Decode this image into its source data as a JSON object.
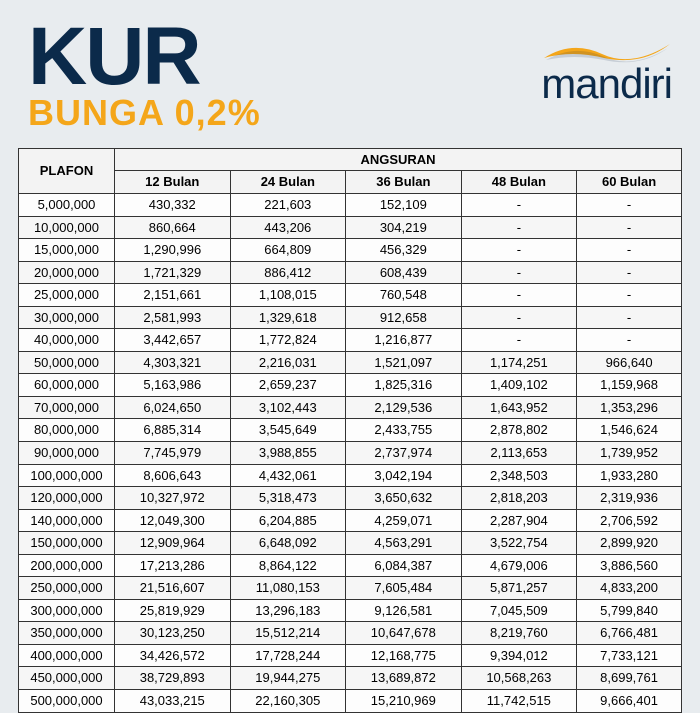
{
  "header": {
    "title": "KUR",
    "subtitle": "BUNGA 0,2%",
    "brand": "mandiri",
    "brand_color": "#0b2a4a",
    "accent_color": "#f4a61a"
  },
  "table": {
    "type": "table",
    "plafon_label": "PLAFON",
    "angsuran_label": "ANGSURAN",
    "columns": [
      "12 Bulan",
      "24 Bulan",
      "36 Bulan",
      "48 Bulan",
      "60 Bulan"
    ],
    "rows": [
      {
        "plafon": "5,000,000",
        "cells": [
          "430,332",
          "221,603",
          "152,109",
          "-",
          "-"
        ]
      },
      {
        "plafon": "10,000,000",
        "cells": [
          "860,664",
          "443,206",
          "304,219",
          "-",
          "-"
        ]
      },
      {
        "plafon": "15,000,000",
        "cells": [
          "1,290,996",
          "664,809",
          "456,329",
          "-",
          "-"
        ]
      },
      {
        "plafon": "20,000,000",
        "cells": [
          "1,721,329",
          "886,412",
          "608,439",
          "-",
          "-"
        ]
      },
      {
        "plafon": "25,000,000",
        "cells": [
          "2,151,661",
          "1,108,015",
          "760,548",
          "-",
          "-"
        ]
      },
      {
        "plafon": "30,000,000",
        "cells": [
          "2,581,993",
          "1,329,618",
          "912,658",
          "-",
          "-"
        ]
      },
      {
        "plafon": "40,000,000",
        "cells": [
          "3,442,657",
          "1,772,824",
          "1,216,877",
          "-",
          "-"
        ]
      },
      {
        "plafon": "50,000,000",
        "cells": [
          "4,303,321",
          "2,216,031",
          "1,521,097",
          "1,174,251",
          "966,640"
        ]
      },
      {
        "plafon": "60,000,000",
        "cells": [
          "5,163,986",
          "2,659,237",
          "1,825,316",
          "1,409,102",
          "1,159,968"
        ]
      },
      {
        "plafon": "70,000,000",
        "cells": [
          "6,024,650",
          "3,102,443",
          "2,129,536",
          "1,643,952",
          "1,353,296"
        ]
      },
      {
        "plafon": "80,000,000",
        "cells": [
          "6,885,314",
          "3,545,649",
          "2,433,755",
          "2,878,802",
          "1,546,624"
        ]
      },
      {
        "plafon": "90,000,000",
        "cells": [
          "7,745,979",
          "3,988,855",
          "2,737,974",
          "2,113,653",
          "1,739,952"
        ]
      },
      {
        "plafon": "100,000,000",
        "cells": [
          "8,606,643",
          "4,432,061",
          "3,042,194",
          "2,348,503",
          "1,933,280"
        ]
      },
      {
        "plafon": "120,000,000",
        "cells": [
          "10,327,972",
          "5,318,473",
          "3,650,632",
          "2,818,203",
          "2,319,936"
        ]
      },
      {
        "plafon": "140,000,000",
        "cells": [
          "12,049,300",
          "6,204,885",
          "4,259,071",
          "2,287,904",
          "2,706,592"
        ]
      },
      {
        "plafon": "150,000,000",
        "cells": [
          "12,909,964",
          "6,648,092",
          "4,563,291",
          "3,522,754",
          "2,899,920"
        ]
      },
      {
        "plafon": "200,000,000",
        "cells": [
          "17,213,286",
          "8,864,122",
          "6,084,387",
          "4,679,006",
          "3,886,560"
        ]
      },
      {
        "plafon": "250,000,000",
        "cells": [
          "21,516,607",
          "11,080,153",
          "7,605,484",
          "5,871,257",
          "4,833,200"
        ]
      },
      {
        "plafon": "300,000,000",
        "cells": [
          "25,819,929",
          "13,296,183",
          "9,126,581",
          "7,045,509",
          "5,799,840"
        ]
      },
      {
        "plafon": "350,000,000",
        "cells": [
          "30,123,250",
          "15,512,214",
          "10,647,678",
          "8,219,760",
          "6,766,481"
        ]
      },
      {
        "plafon": "400,000,000",
        "cells": [
          "34,426,572",
          "17,728,244",
          "12,168,775",
          "9,394,012",
          "7,733,121"
        ]
      },
      {
        "plafon": "450,000,000",
        "cells": [
          "38,729,893",
          "19,944,275",
          "13,689,872",
          "10,568,263",
          "8,699,761"
        ]
      },
      {
        "plafon": "500,000,000",
        "cells": [
          "43,033,215",
          "22,160,305",
          "15,210,969",
          "11,742,515",
          "9,666,401"
        ]
      }
    ],
    "border_color": "#333333",
    "row_alt_bg": "#f6f6f6",
    "header_bg": "#f3f3f3",
    "font_size_pt": 10
  }
}
